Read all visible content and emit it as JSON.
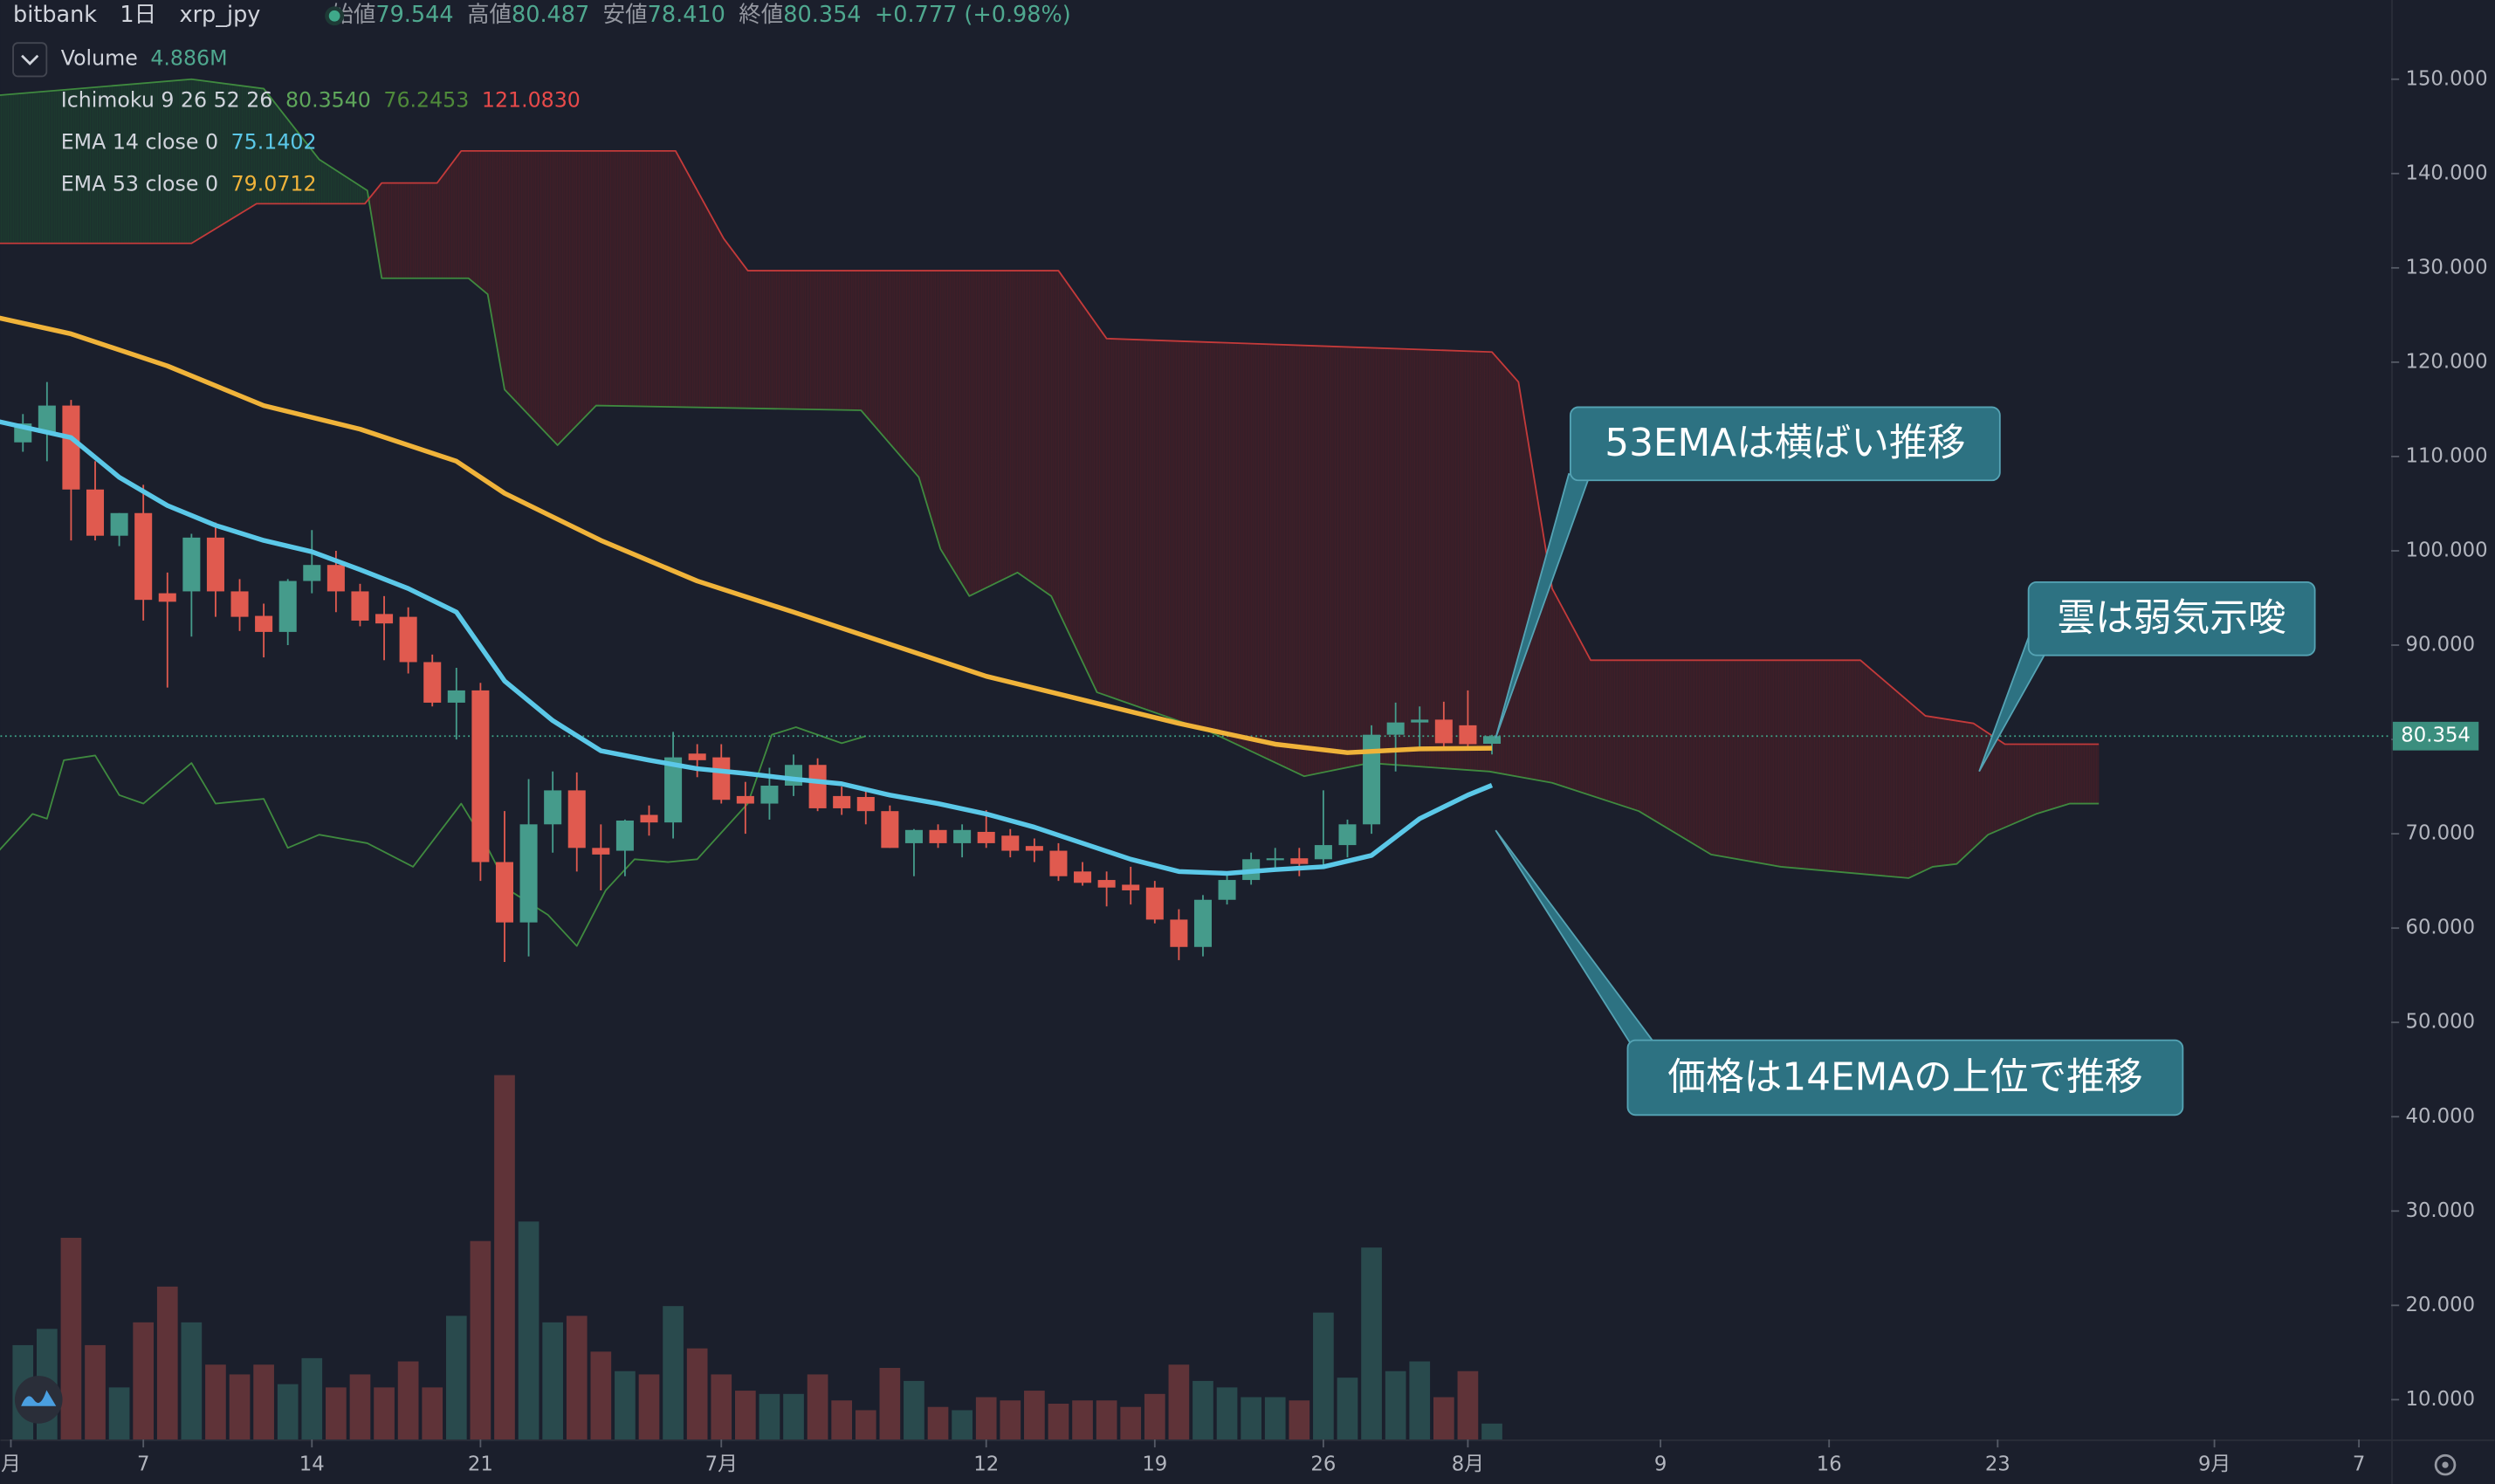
{
  "chart_data": {
    "type": "candlestick",
    "header": {
      "exchange": "bitbank",
      "interval": "1日",
      "symbol": "xrp_jpy",
      "fields": [
        {
          "label": "始値",
          "value": "79.544"
        },
        {
          "label": "高値",
          "value": "80.487"
        },
        {
          "label": "安値",
          "value": "78.410"
        },
        {
          "label": "終値",
          "value": "80.354"
        }
      ],
      "change": "+0.777 (+0.98%)"
    },
    "legend": [
      {
        "label": "Volume",
        "values": [
          "4.886M"
        ],
        "colors": [
          "#4fa88f"
        ]
      },
      {
        "label": "Ichimoku 9 26 52 26",
        "values": [
          "80.3540",
          "76.2453",
          "121.0830"
        ],
        "colors": [
          "#5ea65a",
          "#4f8a3a",
          "#e84a4a"
        ]
      },
      {
        "label": "EMA 14 close 0",
        "values": [
          "75.1402"
        ],
        "colors": [
          "#5bc8e8"
        ]
      },
      {
        "label": "EMA 53 close 0",
        "values": [
          "79.0712"
        ],
        "colors": [
          "#f0b33a"
        ]
      }
    ],
    "up_color": "#459b8b",
    "down_color": "#e05a4f",
    "x": [
      1,
      2,
      3,
      4,
      5,
      6,
      7,
      8,
      9,
      10,
      11,
      12,
      13,
      14,
      15,
      16,
      17,
      18,
      19,
      20,
      21,
      22,
      23,
      24,
      25,
      26,
      27,
      28,
      29,
      30,
      31,
      32,
      33,
      34,
      35,
      36,
      37,
      38,
      39,
      40,
      41,
      42,
      43,
      44,
      45,
      46,
      47,
      48,
      49,
      50,
      51,
      52,
      53,
      54,
      55,
      56,
      57,
      58,
      59,
      60,
      61,
      62
    ],
    "open": [
      111.5,
      112.5,
      115.4,
      106.5,
      101.6,
      104,
      95.5,
      95.7,
      101.4,
      95.7,
      93.1,
      91.4,
      96.8,
      98.5,
      95.7,
      93.3,
      93,
      88.2,
      83.9,
      85.2,
      67,
      60.6,
      71,
      74.6,
      68.5,
      68.2,
      72,
      71.2,
      78.5,
      78.1,
      74,
      73.2,
      75.1,
      77.3,
      74,
      73.9,
      72.4,
      69,
      70.4,
      69,
      70.2,
      69.8,
      68.7,
      68.2,
      66,
      65.1,
      64.6,
      64.3,
      60.9,
      58,
      63,
      65.1,
      67.2,
      67.4,
      67.3,
      68.8,
      71,
      80.5,
      81.8,
      82.1,
      81.5,
      79.544
    ],
    "high": [
      114.5,
      117.9,
      116,
      109.5,
      104,
      107,
      97.7,
      101.8,
      103,
      97,
      94.4,
      97,
      102.2,
      100,
      96.5,
      95.2,
      94,
      89,
      87.6,
      86,
      72.4,
      75.8,
      76.6,
      76.5,
      71,
      71.5,
      73,
      80.8,
      79.5,
      79.5,
      75.5,
      77,
      78.4,
      78,
      75,
      74.5,
      73,
      70.5,
      71,
      71,
      72.5,
      70.5,
      69.5,
      69,
      67,
      66,
      66.5,
      65,
      62,
      63.5,
      66,
      68,
      68.5,
      68.5,
      74.6,
      71.5,
      81.5,
      83.9,
      83.5,
      84,
      85.2,
      80.487
    ],
    "low": [
      110.5,
      109.5,
      101.1,
      101.1,
      100.5,
      92.6,
      85.5,
      90.9,
      93,
      91.5,
      88.7,
      90,
      95.5,
      93.5,
      92,
      88.4,
      87,
      83.5,
      80,
      65,
      56.4,
      57,
      68,
      66,
      64,
      65.5,
      69.8,
      69.5,
      76,
      73.2,
      70,
      71.5,
      74,
      72.4,
      72,
      71,
      68.5,
      65.5,
      68.5,
      67.5,
      68.5,
      67.5,
      67,
      65,
      64.5,
      62.3,
      62.5,
      60.5,
      56.6,
      57,
      62.5,
      64.6,
      66,
      65.5,
      66.5,
      67.5,
      70,
      76.6,
      79,
      79,
      79.1,
      78.41
    ],
    "close": [
      113.5,
      115.4,
      106.5,
      101.6,
      104,
      94.8,
      94.6,
      101.4,
      95.7,
      93,
      91.4,
      96.8,
      98.5,
      95.7,
      92.6,
      92.3,
      88.2,
      83.9,
      85.2,
      67,
      60.6,
      71,
      74.6,
      68.5,
      67.8,
      71.4,
      71.2,
      78.1,
      77.8,
      73.6,
      73.2,
      75.1,
      77.3,
      72.7,
      72.7,
      72.4,
      68.5,
      70.4,
      69,
      70.4,
      69,
      68.2,
      68.2,
      65.5,
      64.8,
      64.3,
      64,
      60.9,
      58,
      63,
      65.1,
      67.3,
      67.4,
      66.8,
      68.8,
      71,
      80.5,
      81.8,
      82.1,
      79.6,
      79.5,
      80.354
    ],
    "volume": {
      "name": "Volume",
      "values": [
        29,
        34,
        62,
        29,
        16,
        36,
        47,
        36,
        23,
        20,
        23,
        17,
        25,
        16,
        20,
        16,
        24,
        16,
        38,
        61,
        112,
        67,
        36,
        38,
        27,
        21,
        20,
        41,
        28,
        20,
        15,
        14,
        14,
        20,
        12,
        9,
        22,
        18,
        10,
        9,
        13,
        12,
        15,
        11,
        12,
        12,
        10,
        14,
        23,
        18,
        16,
        13,
        13,
        12,
        39,
        19,
        59,
        21,
        24,
        13,
        21,
        4.886
      ]
    },
    "volume_ylim": [
      0,
      442.5
    ],
    "ema14": {
      "color": "#5bc8e8",
      "x": [
        0,
        3,
        5,
        7,
        9,
        11,
        13,
        15,
        17,
        19,
        21,
        23,
        25,
        27,
        29,
        31,
        33,
        35,
        37,
        39,
        41,
        43,
        45,
        47,
        49,
        51,
        53,
        55,
        57,
        59,
        61,
        62
      ],
      "values": [
        113.7,
        112.0,
        107.8,
        104.8,
        102.7,
        101.1,
        99.9,
        98.0,
        96.0,
        93.5,
        86.2,
        82.0,
        78.8,
        77.8,
        76.9,
        76.4,
        75.8,
        75.3,
        74.1,
        73.2,
        72.1,
        70.7,
        69.0,
        67.3,
        66.0,
        65.8,
        66.2,
        66.5,
        67.7,
        71.6,
        74.1,
        75.1402
      ]
    },
    "ema53": {
      "color": "#f0b33a",
      "x": [
        0,
        3,
        7,
        11,
        15,
        19,
        21,
        25,
        29,
        33,
        37,
        41,
        45,
        49,
        53,
        56,
        59,
        62
      ],
      "values": [
        124.7,
        123.0,
        119.6,
        115.4,
        112.9,
        109.5,
        106.1,
        101.1,
        96.8,
        93.5,
        90.1,
        86.7,
        84.2,
        81.7,
        79.5,
        78.6,
        79.0,
        79.0712
      ]
    },
    "senkou_a": {
      "color": "#3f8a3f",
      "x": [
        0,
        8,
        11,
        13.3,
        15.3,
        15.9,
        19.5,
        20.3,
        21,
        23.2,
        24.8,
        35.8,
        38.2,
        39.1,
        40.3,
        42.3,
        43.7,
        45.6,
        50.3,
        54.2,
        56.9,
        61.9,
        64.5,
        68.1,
        71.1,
        74,
        79.3,
        80.3,
        81.3,
        82.6,
        84.6,
        86,
        87.2
      ],
      "values": [
        148.3,
        150,
        149,
        141.5,
        138.2,
        128.9,
        128.9,
        127.2,
        117.1,
        111.2,
        115.4,
        114.9,
        107.8,
        100.2,
        95.2,
        97.7,
        95.2,
        85.0,
        80.8,
        76.1,
        77.5,
        76.6,
        75.4,
        72.4,
        67.8,
        66.5,
        65.3,
        66.5,
        66.8,
        69.9,
        72.1,
        73.2,
        73.2
      ]
    },
    "senkou_b": {
      "color": "#c43a3a",
      "x": [
        0,
        8,
        10.7,
        15.2,
        15.9,
        18.2,
        19.2,
        28.1,
        30.1,
        31.1,
        44,
        46,
        62,
        63.1,
        64.5,
        66.1,
        77.3,
        80,
        82,
        83.3,
        87.2
      ],
      "values": [
        132.6,
        132.6,
        136.8,
        136.8,
        139.0,
        139.0,
        142.4,
        142.4,
        133.1,
        129.7,
        129.7,
        122.5,
        121.08,
        117.9,
        96.0,
        88.4,
        88.4,
        82.5,
        81.7,
        79.5,
        79.5
      ]
    },
    "lagging": {
      "color": "#3f8a3f",
      "x": [
        0,
        1.4,
        2,
        2.7,
        4,
        5,
        6,
        8,
        9,
        11,
        12,
        13.3,
        15.3,
        17.2,
        19.2,
        20.2,
        21.2,
        22.8,
        24,
        25.2,
        26.4,
        27.8,
        29,
        31.1,
        32.1,
        33.1,
        35,
        36
      ],
      "values": [
        68.2,
        72.1,
        71.6,
        77.8,
        78.3,
        74.1,
        73.2,
        77.5,
        73.2,
        73.7,
        68.5,
        69.9,
        69.0,
        66.5,
        73.2,
        69.0,
        64.0,
        61.4,
        58.1,
        64.0,
        67.3,
        67.0,
        67.3,
        73.2,
        80.5,
        81.3,
        79.6,
        80.354
      ]
    },
    "cloud_colors": {
      "bear": "#6a1f26",
      "bull": "#1f5a35"
    },
    "last_price": {
      "value": 80.354,
      "label": "80.354"
    },
    "ylim": [
      5.78,
      158.4
    ],
    "yticks": [
      {
        "value": 10,
        "label": "10.000"
      },
      {
        "value": 20,
        "label": "20.000"
      },
      {
        "value": 30,
        "label": "30.000"
      },
      {
        "value": 40,
        "label": "40.000"
      },
      {
        "value": 50,
        "label": "50.000"
      },
      {
        "value": 60,
        "label": "60.000"
      },
      {
        "value": 70,
        "label": "70.000"
      },
      {
        "value": 80,
        "label": "80.000"
      },
      {
        "value": 90,
        "label": "90.000"
      },
      {
        "value": 100,
        "label": "100.000"
      },
      {
        "value": 110,
        "label": "110.000"
      },
      {
        "value": 120,
        "label": "120.000"
      },
      {
        "value": 130,
        "label": "130.000"
      },
      {
        "value": 140,
        "label": "140.000"
      },
      {
        "value": 150,
        "label": "150.000"
      }
    ],
    "xlim": [
      0.066,
      99.34
    ],
    "xticks": [
      {
        "value": 0.5,
        "label": "月"
      },
      {
        "value": 6,
        "label": "7"
      },
      {
        "value": 13,
        "label": "14"
      },
      {
        "value": 20,
        "label": "21"
      },
      {
        "value": 30,
        "label": "7月"
      },
      {
        "value": 41,
        "label": "12"
      },
      {
        "value": 48,
        "label": "19"
      },
      {
        "value": 55,
        "label": "26"
      },
      {
        "value": 61,
        "label": "8月"
      },
      {
        "value": 69,
        "label": "9"
      },
      {
        "value": 76,
        "label": "16"
      },
      {
        "value": 83,
        "label": "23"
      },
      {
        "value": 92,
        "label": "9月"
      },
      {
        "value": 98,
        "label": "7"
      }
    ],
    "annotations": [
      {
        "text": "53EMAは横ばい推移"
      },
      {
        "text": "雲は弱気示唆"
      },
      {
        "text": "価格は14EMAの上位で推移"
      }
    ]
  }
}
